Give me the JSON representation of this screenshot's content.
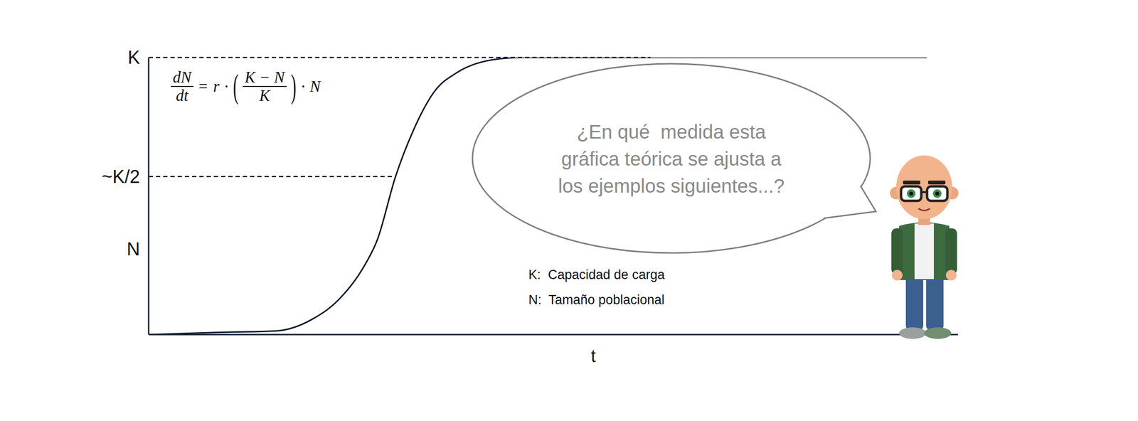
{
  "chart_data": {
    "type": "line",
    "x": [
      0,
      8.9,
      16.3,
      21.0,
      24.7,
      27.5,
      29.4,
      31.7,
      34.0,
      36.8,
      39.6,
      44.3,
      48.0,
      100
    ],
    "values": [
      0,
      0.8,
      1.3,
      5.5,
      13.4,
      23.8,
      34.3,
      56.8,
      73.6,
      88.0,
      94.5,
      99.2,
      100,
      100
    ],
    "color": "#0d1b2a",
    "xlim": [
      0,
      104
    ],
    "ylim": [
      0,
      100
    ],
    "yticks": [
      {
        "value": 31,
        "label": "N"
      },
      {
        "value": 57,
        "label": "~K/2"
      },
      {
        "value": 100,
        "label": "K"
      }
    ],
    "x_label": "t",
    "tick_labels": "y",
    "equation": {
      "lhs": {
        "num": "dN",
        "den": "dt"
      },
      "rhs": [
        "=",
        "r",
        "·",
        "(",
        {
          "num": "K − N",
          "den": "K"
        },
        ")",
        "·",
        "N"
      ]
    },
    "definitions": [
      "K:  Capacidad de carga",
      "N:  Tamaño poblacional"
    ],
    "speech_bubble": [
      "¿En qué  medida esta",
      "gráfica teórica se ajusta a",
      "los ejemplos siguientes...?"
    ]
  }
}
